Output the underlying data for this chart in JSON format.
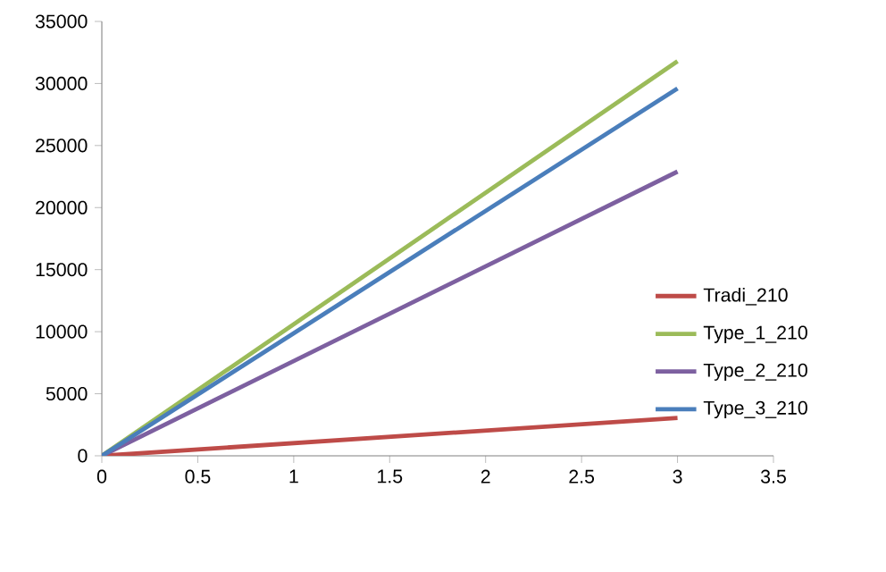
{
  "chart_data": {
    "type": "line",
    "x": [
      0,
      3
    ],
    "series": [
      {
        "name": "Tradi_210",
        "color": "#be4b48",
        "values": [
          0,
          3050
        ]
      },
      {
        "name": "Type_1_210",
        "color": "#9bbb59",
        "values": [
          0,
          31800
        ]
      },
      {
        "name": "Type_2_210",
        "color": "#7d60a0",
        "values": [
          0,
          22900
        ]
      },
      {
        "name": "Type_3_210",
        "color": "#4a7ebb",
        "values": [
          0,
          29600
        ]
      }
    ],
    "xlim": [
      0,
      3.5
    ],
    "xticks": [
      0,
      0.5,
      1,
      1.5,
      2,
      2.5,
      3,
      3.5
    ],
    "ylim": [
      0,
      35000
    ],
    "yticks": [
      0,
      5000,
      10000,
      15000,
      20000,
      25000,
      30000,
      35000
    ],
    "grid": false,
    "legend": "right",
    "marker": "none",
    "line_style": "solid"
  }
}
